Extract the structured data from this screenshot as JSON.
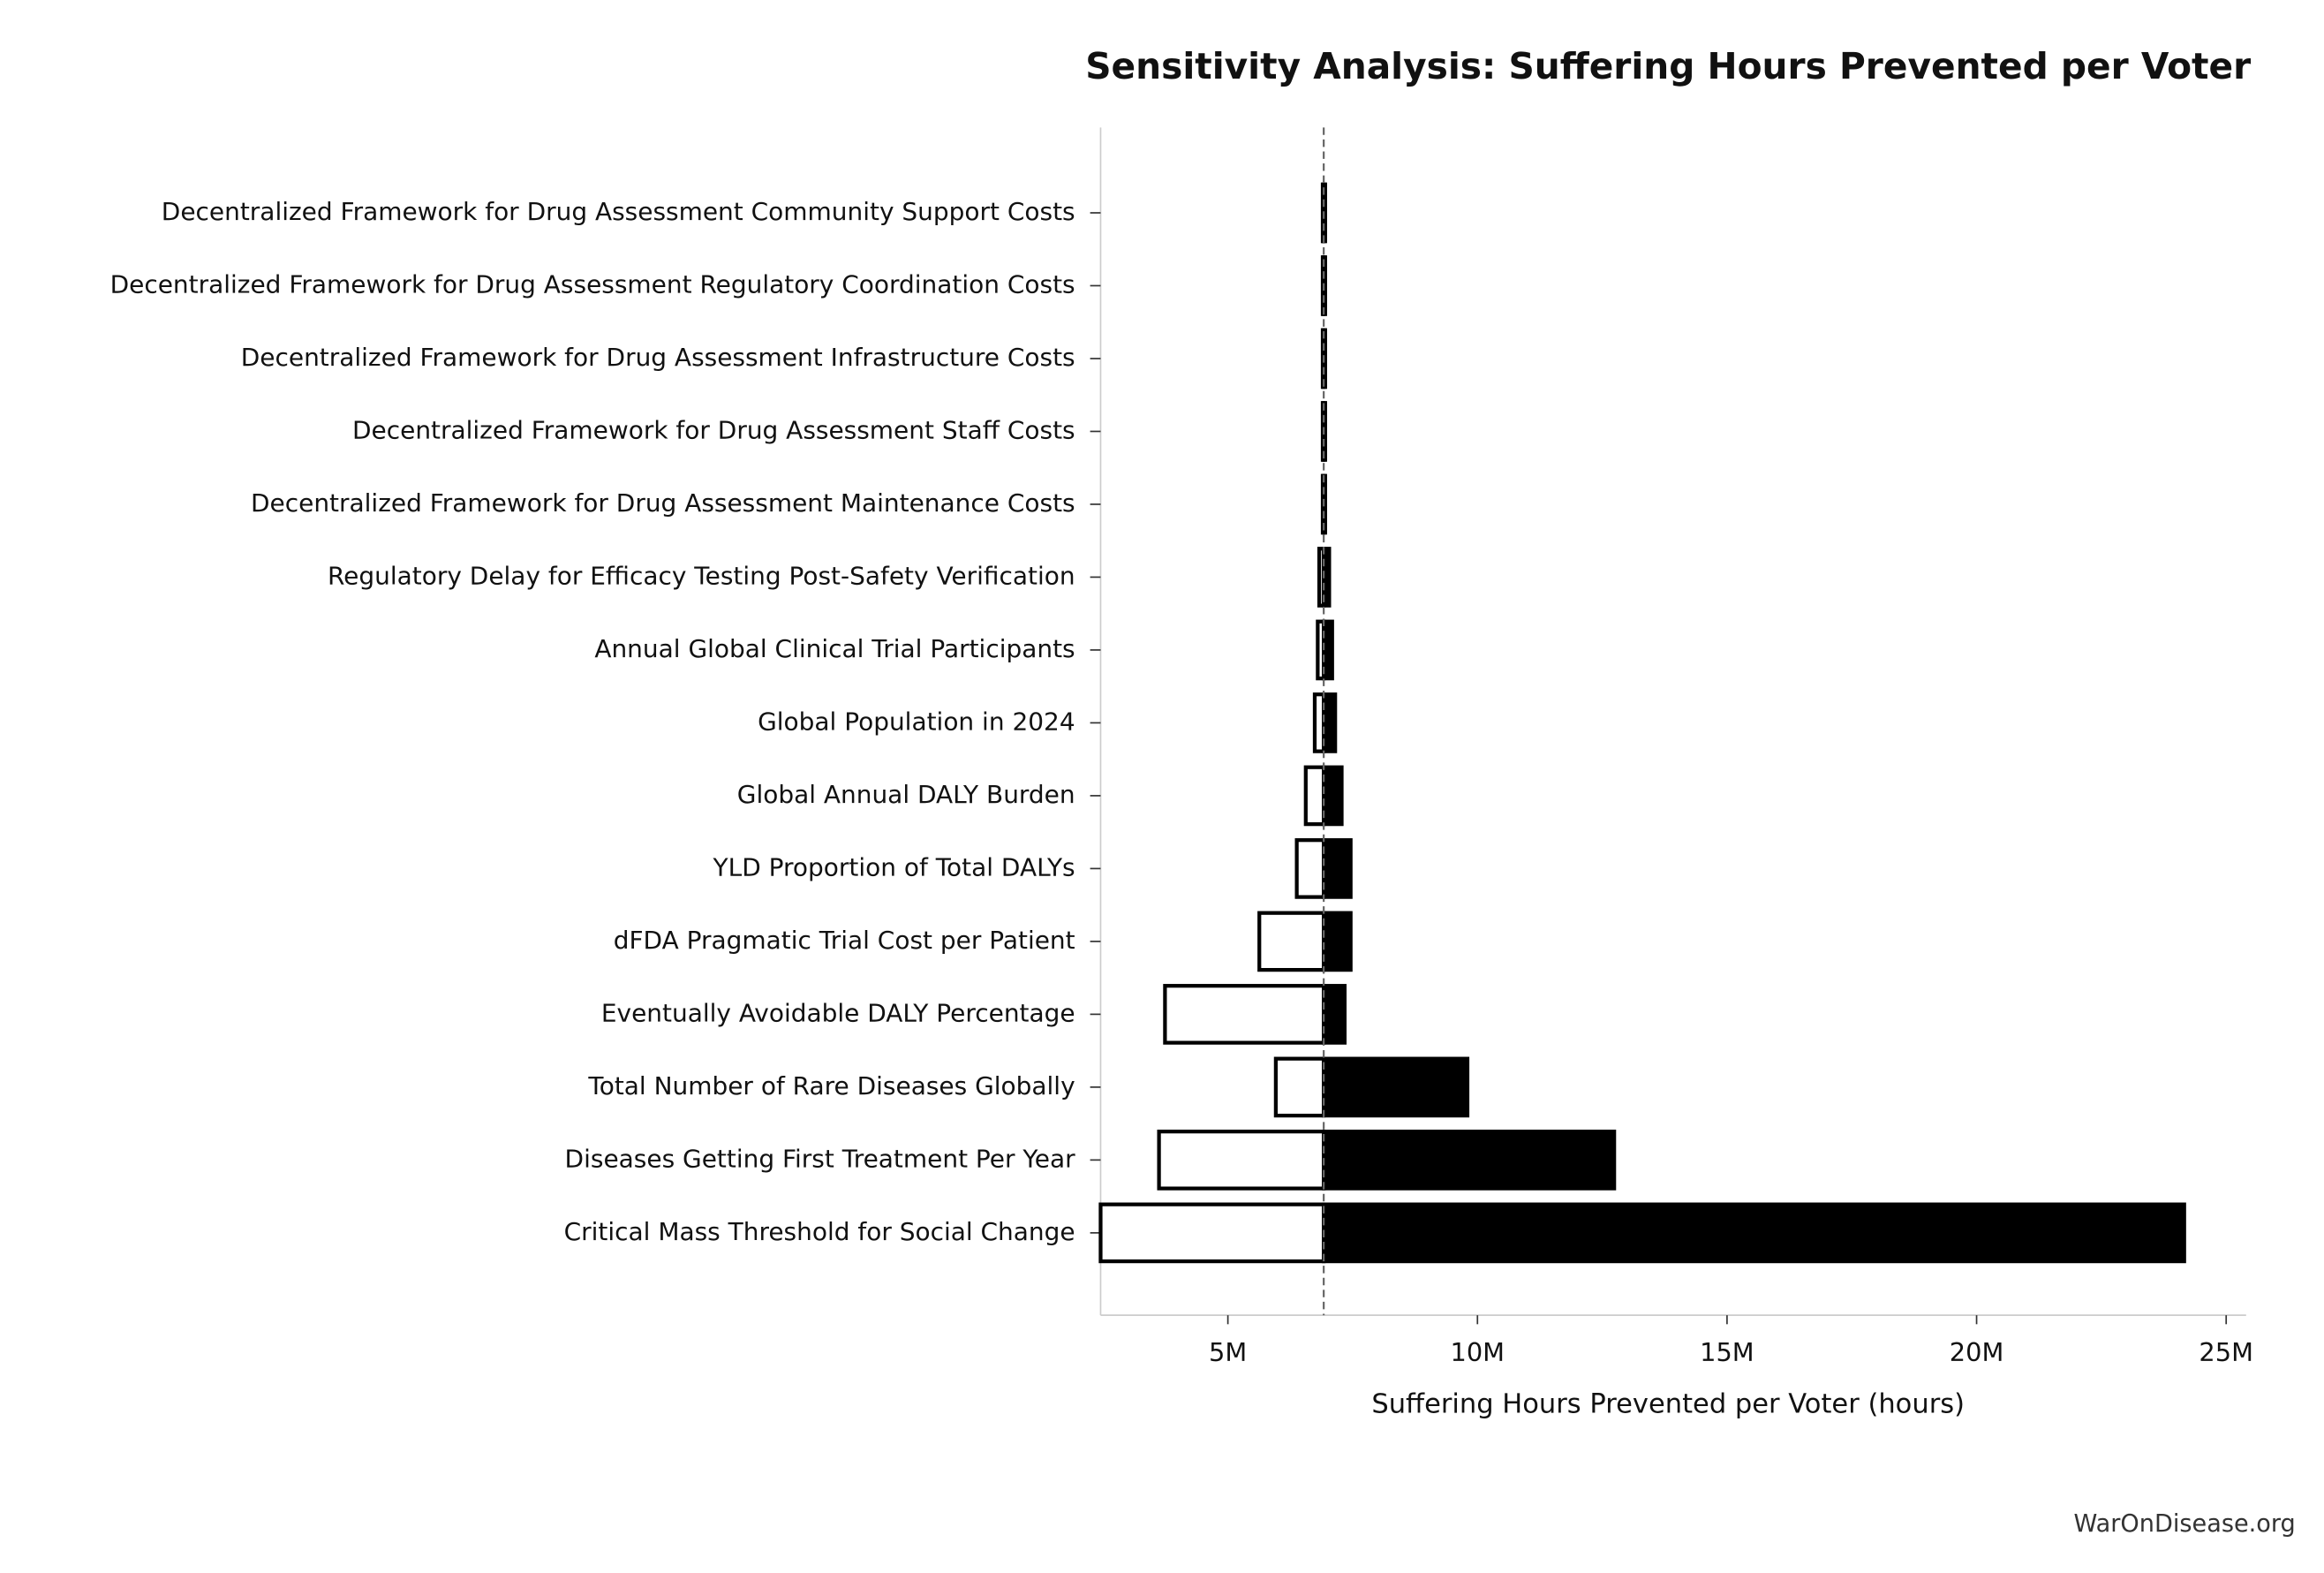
{
  "chart_data": {
    "type": "tornado",
    "title": "Sensitivity Analysis: Suffering Hours Prevented per Voter",
    "x_label": "Suffering Hours Prevented per Voter (hours)",
    "footer": "WarOnDisease.org",
    "categories": [
      "Decentralized Framework for Drug Assessment Community Support Costs",
      "Decentralized Framework for Drug Assessment Regulatory Coordination Costs",
      "Decentralized Framework for Drug Assessment Infrastructure Costs",
      "Decentralized Framework for Drug Assessment Staff Costs",
      "Decentralized Framework for Drug Assessment Maintenance Costs",
      "Regulatory Delay for Efficacy Testing Post-Safety Verification",
      "Annual Global Clinical Trial Participants",
      "Global Population in 2024",
      "Global Annual DALY Burden",
      "YLD Proportion of Total DALYs",
      "dFDA Pragmatic Trial Cost per Patient",
      "Eventually Avoidable DALY Percentage",
      "Total Number of Rare Diseases Globally",
      "Diseases Getting First Treatment Per Year",
      "Critical Mass Threshold for Social Change"
    ],
    "baseline": 6920000,
    "series": [
      {
        "color": "#ffffff",
        "values": [
          6900000,
          6900000,
          6900000,
          6900000,
          6900000,
          6830000,
          6800000,
          6740000,
          6560000,
          6380000,
          5630000,
          3740000,
          5960000,
          3620000,
          2450000
        ]
      },
      {
        "color": "#000000",
        "values": [
          6950000,
          6950000,
          6950000,
          6950000,
          6950000,
          7030000,
          7090000,
          7150000,
          7280000,
          7460000,
          7460000,
          7340000,
          9800000,
          12740000,
          24160000
        ]
      }
    ],
    "xlim": [
      2450000,
      25400000
    ],
    "xticks": [
      {
        "value": 5000000,
        "label": "5M"
      },
      {
        "value": 10000000,
        "label": "10M"
      },
      {
        "value": 15000000,
        "label": "15M"
      },
      {
        "value": 20000000,
        "label": "20M"
      },
      {
        "value": 25000000,
        "label": "25M"
      }
    ]
  }
}
